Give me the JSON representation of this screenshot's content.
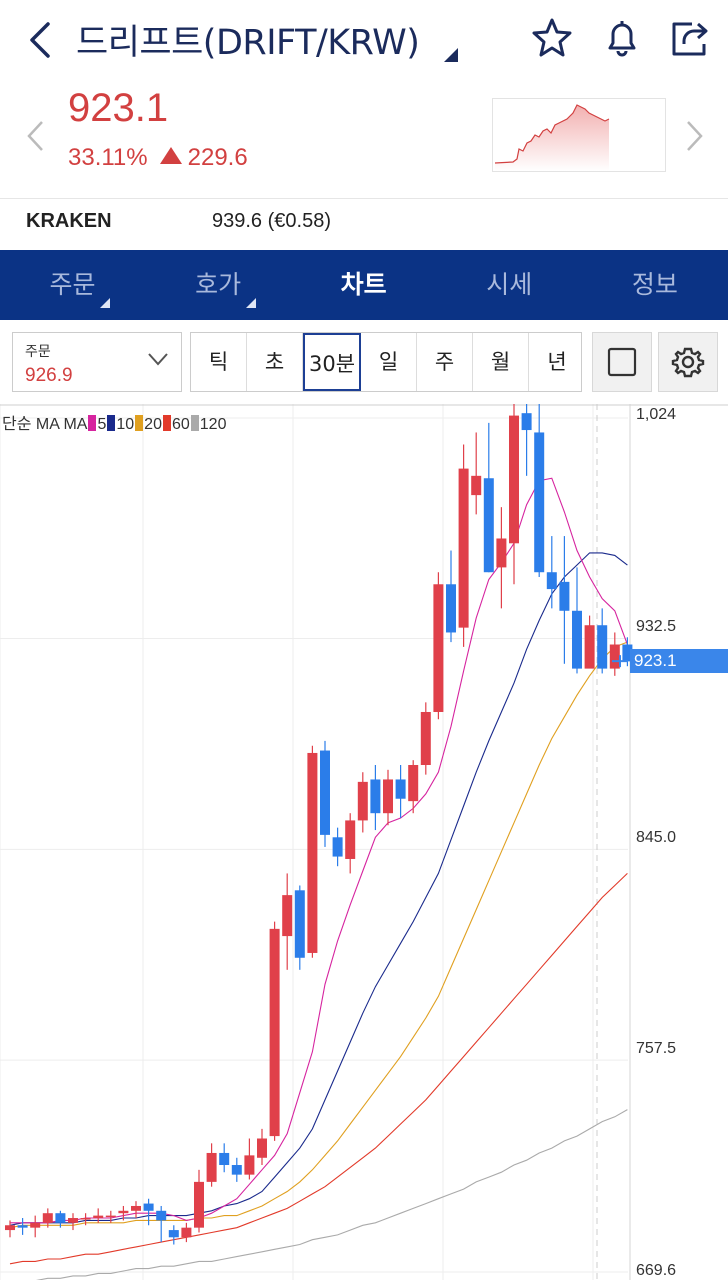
{
  "header": {
    "title": "드리프트(DRIFT/KRW)",
    "icons": [
      "back-chevron-icon",
      "dropdown-triangle-icon",
      "star-icon",
      "bell-icon",
      "share-icon"
    ]
  },
  "ticker": {
    "price": "923.1",
    "change_pct": "33.11%",
    "change_abs": "229.6",
    "color_up": "#d24040"
  },
  "exchange": {
    "name": "KRAKEN",
    "price": "939.6 (€0.58)"
  },
  "tabs": [
    {
      "label": "주문",
      "active": false,
      "corner": true
    },
    {
      "label": "호가",
      "active": false,
      "corner": true
    },
    {
      "label": "차트",
      "active": true,
      "corner": false
    },
    {
      "label": "시세",
      "active": false,
      "corner": false
    },
    {
      "label": "정보",
      "active": false,
      "corner": false
    }
  ],
  "toolbar": {
    "order_label": "주문",
    "order_value": "926.9",
    "periods": [
      "틱",
      "초",
      "30분",
      "일",
      "주",
      "월",
      "년"
    ],
    "selected_period": "30분"
  },
  "chart_data": {
    "type": "candlestick",
    "indicator_label": "단순 MA",
    "ma_legend": [
      {
        "period": "5",
        "color": "#d6249f"
      },
      {
        "period": "10",
        "color": "#1a2a8c"
      },
      {
        "period": "20",
        "color": "#e0a020"
      },
      {
        "period": "60",
        "color": "#e23a2a"
      },
      {
        "period": "120",
        "color": "#aaaaaa"
      }
    ],
    "y_ticks": [
      "1,024",
      "932.5",
      "845.0",
      "757.5",
      "669.6"
    ],
    "y_tick_values": [
      1024,
      932.5,
      845.0,
      757.5,
      669.6
    ],
    "ylim": [
      669.6,
      1024
    ],
    "last_price": "923.1",
    "up_color": "#e0404a",
    "down_color": "#2b7de9",
    "candles": [
      [
        687,
        689,
        684,
        691
      ],
      [
        689,
        688,
        685,
        692
      ],
      [
        688,
        690,
        684,
        693
      ],
      [
        690,
        694,
        688,
        696
      ],
      [
        694,
        690,
        688,
        695
      ],
      [
        690,
        692,
        687,
        694
      ],
      [
        692,
        692,
        689,
        694
      ],
      [
        692,
        693,
        690,
        696
      ],
      [
        693,
        693,
        690,
        695
      ],
      [
        694,
        695,
        691,
        697
      ],
      [
        695,
        697,
        692,
        699
      ],
      [
        698,
        695,
        689,
        700
      ],
      [
        695,
        691,
        682,
        697
      ],
      [
        687,
        684,
        681,
        689
      ],
      [
        684,
        688,
        682,
        690
      ],
      [
        688,
        707,
        686,
        712
      ],
      [
        707,
        719,
        705,
        723
      ],
      [
        719,
        714,
        711,
        723
      ],
      [
        714,
        710,
        707,
        717
      ],
      [
        710,
        718,
        708,
        725
      ],
      [
        717,
        725,
        714,
        729
      ],
      [
        726,
        812,
        724,
        815
      ],
      [
        809,
        826,
        795,
        835
      ],
      [
        828,
        800,
        795,
        830
      ],
      [
        802,
        885,
        800,
        888
      ],
      [
        886,
        851,
        846,
        890
      ],
      [
        850,
        842,
        838,
        854
      ],
      [
        841,
        857,
        835,
        860
      ],
      [
        857,
        873,
        852,
        877
      ],
      [
        874,
        860,
        853,
        880
      ],
      [
        860,
        874,
        855,
        878
      ],
      [
        874,
        866,
        858,
        880
      ],
      [
        865,
        880,
        860,
        882
      ],
      [
        880,
        902,
        876,
        906
      ],
      [
        902,
        955,
        899,
        960
      ],
      [
        955,
        935,
        931,
        969
      ],
      [
        937,
        1003,
        929,
        1013
      ],
      [
        992,
        1000,
        984,
        1018
      ],
      [
        999,
        960,
        960,
        1022
      ],
      [
        962,
        974,
        945,
        987
      ],
      [
        972,
        1025,
        955,
        1030
      ],
      [
        1026,
        1019,
        1000,
        1036
      ],
      [
        1018,
        960,
        958,
        1030
      ],
      [
        960,
        953,
        945,
        975
      ],
      [
        956,
        944,
        922,
        975
      ],
      [
        944,
        920,
        918,
        962
      ],
      [
        920,
        938,
        922,
        942
      ],
      [
        938,
        920,
        918,
        945
      ],
      [
        920,
        930,
        917,
        935
      ],
      [
        930,
        923,
        921,
        933
      ]
    ],
    "ma": {
      "5": [
        690,
        690,
        690,
        690,
        691,
        691,
        692,
        692,
        692,
        693,
        694,
        694,
        694,
        693,
        691,
        692,
        694,
        697,
        700,
        706,
        712,
        718,
        727,
        744,
        761,
        789,
        807,
        822,
        836,
        850,
        856,
        858,
        862,
        868,
        877,
        896,
        919,
        941,
        957,
        964,
        972,
        988,
        998,
        999,
        985,
        969,
        958,
        949,
        944,
        930
      ],
      "10": [
        689,
        690,
        690,
        690,
        690,
        690,
        691,
        691,
        691,
        692,
        692,
        693,
        693,
        693,
        693,
        694,
        695,
        697,
        698,
        700,
        703,
        709,
        715,
        721,
        729,
        741,
        753,
        765,
        777,
        788,
        797,
        806,
        815,
        825,
        835,
        849,
        863,
        877,
        890,
        902,
        914,
        928,
        940,
        951,
        958,
        963,
        968,
        968,
        967,
        963
      ],
      "20": [
        688,
        689,
        689,
        689,
        689,
        689,
        690,
        690,
        690,
        690,
        691,
        691,
        691,
        691,
        691,
        692,
        692,
        693,
        693,
        695,
        697,
        700,
        703,
        707,
        712,
        718,
        724,
        731,
        738,
        745,
        752,
        759,
        767,
        775,
        784,
        796,
        808,
        820,
        832,
        844,
        856,
        868,
        880,
        891,
        900,
        909,
        917,
        924,
        929,
        931
      ],
      "60": [
        673,
        674,
        674,
        675,
        675,
        676,
        677,
        677,
        678,
        679,
        680,
        681,
        682,
        683,
        684,
        685,
        686,
        687,
        688,
        690,
        692,
        694,
        696,
        699,
        702,
        705,
        709,
        713,
        717,
        721,
        726,
        731,
        736,
        741,
        747,
        753,
        759,
        765,
        771,
        777,
        783,
        789,
        795,
        801,
        807,
        813,
        819,
        825,
        830,
        835
      ],
      "120": [
        665,
        666,
        666,
        667,
        667,
        668,
        668,
        669,
        669,
        670,
        671,
        671,
        672,
        672,
        673,
        674,
        674,
        675,
        676,
        677,
        678,
        679,
        680,
        681,
        683,
        684,
        685,
        687,
        689,
        690,
        692,
        694,
        696,
        698,
        700,
        702,
        704,
        707,
        709,
        711,
        714,
        716,
        719,
        721,
        724,
        726,
        729,
        732,
        734,
        737
      ]
    }
  }
}
